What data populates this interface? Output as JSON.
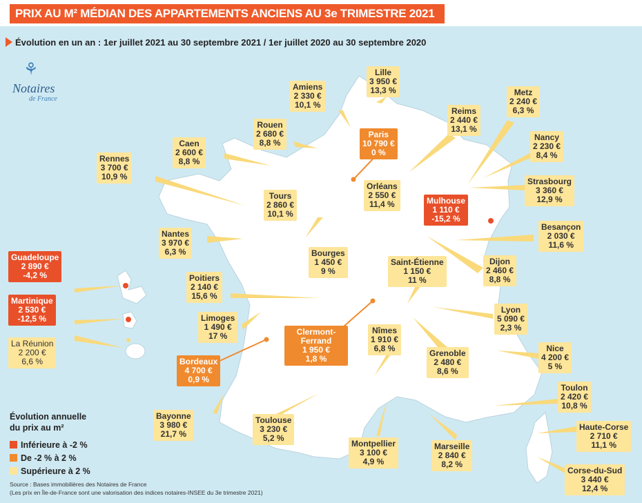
{
  "title": "PRIX AU M² MÉDIAN DES APPARTEMENTS ANCIENS AU 3e TRIMESTRE 2021",
  "subtitle": "Évolution en un an : 1er juillet 2021 au 30 septembre 2021 / 1er juillet 2020 au 30 septembre 2020",
  "logo": {
    "name": "Notaires",
    "sub": "de France"
  },
  "colors": {
    "red": "#e8502a",
    "orange": "#f08a2e",
    "yellow": "#fde59a",
    "map": "#ffffff",
    "sea": "#cfe9f2",
    "title_bg": "#ef5a2b"
  },
  "cities": {
    "lille": {
      "name": "Lille",
      "price": "3 950 €",
      "change": "13,3 %"
    },
    "amiens": {
      "name": "Amiens",
      "price": "2 330 €",
      "change": "10,1 %"
    },
    "rouen": {
      "name": "Rouen",
      "price": "2 680 €",
      "change": "8,8 %"
    },
    "caen": {
      "name": "Caen",
      "price": "2 600 €",
      "change": "8,8 %"
    },
    "rennes": {
      "name": "Rennes",
      "price": "3 700 €",
      "change": "10,9 %"
    },
    "paris": {
      "name": "Paris",
      "price": "10 790 €",
      "change": "0 %"
    },
    "reims": {
      "name": "Reims",
      "price": "2 440 €",
      "change": "13,1 %"
    },
    "metz": {
      "name": "Metz",
      "price": "2 240 €",
      "change": "6,3 %"
    },
    "nancy": {
      "name": "Nancy",
      "price": "2 230 €",
      "change": "8,4 %"
    },
    "strasbourg": {
      "name": "Strasbourg",
      "price": "3 360 €",
      "change": "12,9 %"
    },
    "tours": {
      "name": "Tours",
      "price": "2 860 €",
      "change": "10,1 %"
    },
    "orleans": {
      "name": "Orléans",
      "price": "2 550 €",
      "change": "11,4 %"
    },
    "mulhouse": {
      "name": "Mulhouse",
      "price": "1 110 €",
      "change": "-15,2 %"
    },
    "besancon": {
      "name": "Besançon",
      "price": "2 030 €",
      "change": "11,6 %"
    },
    "nantes": {
      "name": "Nantes",
      "price": "3 970 €",
      "change": "6,3 %"
    },
    "bourges": {
      "name": "Bourges",
      "price": "1 450 €",
      "change": "9 %"
    },
    "saint_etienne": {
      "name": "Saint-Étienne",
      "price": "1 150 €",
      "change": "11 %"
    },
    "dijon": {
      "name": "Dijon",
      "price": "2 460 €",
      "change": "8,8 %"
    },
    "poitiers": {
      "name": "Poitiers",
      "price": "2 140 €",
      "change": "15,6 %"
    },
    "limoges": {
      "name": "Limoges",
      "price": "1 490 €",
      "change": "17 %"
    },
    "lyon": {
      "name": "Lyon",
      "price": "5 090 €",
      "change": "2,3 %"
    },
    "clermont": {
      "name": "Clermont-Ferrand",
      "price": "1 950 €",
      "change": "1,8 %"
    },
    "nimes": {
      "name": "Nîmes",
      "price": "1 910 €",
      "change": "6,8 %"
    },
    "bordeaux": {
      "name": "Bordeaux",
      "price": "4 700 €",
      "change": "0,9 %"
    },
    "grenoble": {
      "name": "Grenoble",
      "price": "2 480 €",
      "change": "8,6 %"
    },
    "nice": {
      "name": "Nice",
      "price": "4 200 €",
      "change": "5 %"
    },
    "toulon": {
      "name": "Toulon",
      "price": "2 420 €",
      "change": "10,8 %"
    },
    "bayonne": {
      "name": "Bayonne",
      "price": "3 980 €",
      "change": "21,7 %"
    },
    "toulouse": {
      "name": "Toulouse",
      "price": "3 230 €",
      "change": "5,2 %"
    },
    "montpellier": {
      "name": "Montpellier",
      "price": "3 100 €",
      "change": "4,9 %"
    },
    "marseille": {
      "name": "Marseille",
      "price": "2 840 €",
      "change": "8,2 %"
    },
    "haute_corse": {
      "name": "Haute-Corse",
      "price": "2 710 €",
      "change": "11,1 %"
    },
    "corse_du_sud": {
      "name": "Corse-du-Sud",
      "price": "3 440 €",
      "change": "12,4 %"
    },
    "guadeloupe": {
      "name": "Guadeloupe",
      "price": "2 890 €",
      "change": "-4,2 %"
    },
    "martinique": {
      "name": "Martinique",
      "price": "2 530 €",
      "change": "-12,5 %"
    },
    "reunion": {
      "name": "La Réunion",
      "price": "2 200 €",
      "change": "6,6 %"
    }
  },
  "legend": {
    "title_line1": "Évolution annuelle",
    "title_line2": "du prix au m²",
    "items": [
      {
        "label": "Inférieure à -2 %",
        "color": "#e8502a"
      },
      {
        "label": "De -2 % à 2 %",
        "color": "#f08a2e"
      },
      {
        "label": "Supérieure à 2 %",
        "color": "#fde59a"
      }
    ]
  },
  "source_line1": "Source : Bases immobilières des Notaires de France",
  "source_line2": "(Les prix en Île-de-France sont une valorisation des indices notaires-INSEE du 3e trimestre 2021)"
}
